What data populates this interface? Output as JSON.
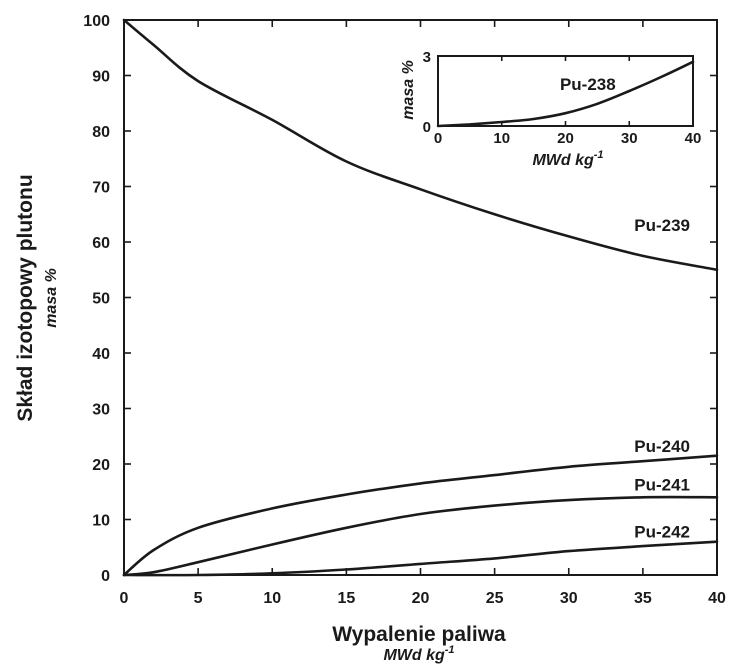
{
  "chart_data": [
    {
      "type": "line",
      "xlabel": "Wypalenie paliwa",
      "xlabel_unit": "MWd kg",
      "xlabel_unit_exp": "-1",
      "ylabel": "Skład izotopowy plutonu",
      "ylabel_unit": "masa %",
      "xlim": [
        0,
        40
      ],
      "ylim": [
        0,
        100
      ],
      "xticks": [
        0,
        5,
        10,
        15,
        20,
        25,
        30,
        35,
        40
      ],
      "yticks": [
        0,
        10,
        20,
        30,
        40,
        50,
        60,
        70,
        80,
        90,
        100
      ],
      "series": [
        {
          "name": "Pu-239",
          "x": [
            0,
            2,
            5,
            10,
            15,
            20,
            25,
            30,
            35,
            40
          ],
          "y": [
            100,
            95.5,
            89,
            82,
            74.5,
            69.5,
            65,
            61,
            57.5,
            55
          ]
        },
        {
          "name": "Pu-240",
          "x": [
            0,
            2,
            5,
            10,
            15,
            20,
            25,
            30,
            35,
            40
          ],
          "y": [
            0,
            4.5,
            8.5,
            12,
            14.5,
            16.5,
            18,
            19.5,
            20.5,
            21.5
          ]
        },
        {
          "name": "Pu-241",
          "x": [
            0,
            2,
            5,
            10,
            15,
            20,
            25,
            30,
            35,
            40
          ],
          "y": [
            0,
            0.5,
            2.3,
            5.5,
            8.5,
            11,
            12.5,
            13.5,
            14,
            14
          ]
        },
        {
          "name": "Pu-242",
          "x": [
            0,
            5,
            10,
            15,
            20,
            25,
            30,
            35,
            40
          ],
          "y": [
            0,
            0,
            0.3,
            1,
            2,
            3,
            4.3,
            5.2,
            6
          ]
        }
      ]
    },
    {
      "type": "line",
      "xlabel": "MWd kg",
      "xlabel_exp": "-1",
      "ylabel": "masa %",
      "xlim": [
        0,
        40
      ],
      "ylim": [
        0,
        3
      ],
      "xticks": [
        0,
        10,
        20,
        30,
        40
      ],
      "yticks": [
        0,
        3
      ],
      "series": [
        {
          "name": "Pu-238",
          "x": [
            0,
            5,
            10,
            15,
            20,
            25,
            30,
            35,
            40
          ],
          "y": [
            0,
            0.07,
            0.17,
            0.3,
            0.55,
            0.95,
            1.5,
            2.1,
            2.75
          ]
        }
      ]
    }
  ]
}
